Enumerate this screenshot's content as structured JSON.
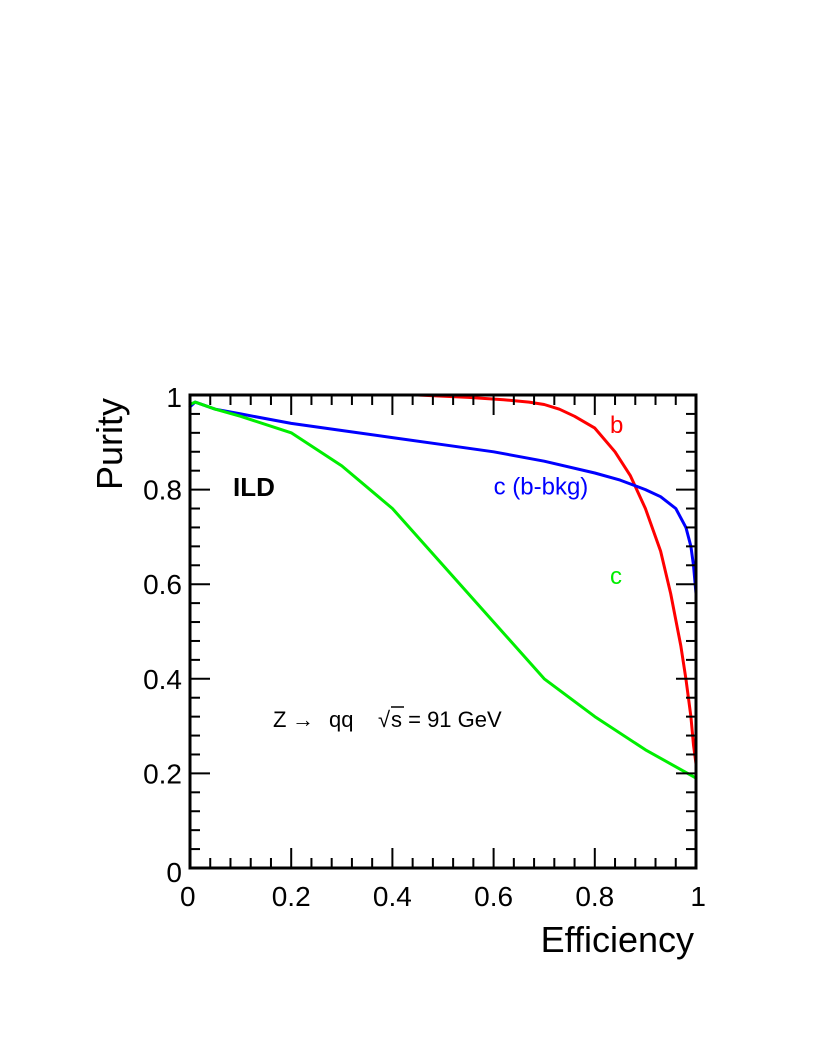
{
  "chart_data": {
    "type": "line",
    "xlabel": "Efficiency",
    "ylabel": "Purity",
    "xlim": [
      0,
      1
    ],
    "ylim": [
      0,
      1
    ],
    "grid": false,
    "x_ticks": [
      "0",
      "0.2",
      "0.4",
      "0.6",
      "0.8",
      "1"
    ],
    "y_ticks": [
      "0",
      "0.2",
      "0.4",
      "0.6",
      "0.8",
      "1"
    ],
    "annotations": {
      "experiment": "ILD",
      "process_lhs": "Z",
      "process_arrow": "→",
      "process_rhs": "qq",
      "energy_root": "√",
      "energy_text": "s = 91 GeV"
    },
    "series": [
      {
        "name": "b",
        "color": "#ff0000",
        "x": [
          0.45,
          0.55,
          0.62,
          0.67,
          0.7,
          0.73,
          0.76,
          0.8,
          0.84,
          0.87,
          0.9,
          0.93,
          0.95,
          0.97,
          0.98,
          0.99,
          0.995,
          1.0
        ],
        "y": [
          1.0,
          0.995,
          0.99,
          0.985,
          0.98,
          0.97,
          0.955,
          0.93,
          0.88,
          0.83,
          0.76,
          0.67,
          0.58,
          0.47,
          0.4,
          0.32,
          0.26,
          0.22
        ]
      },
      {
        "name": "c (b-bkg)",
        "color": "#0000ff",
        "x": [
          0.0,
          0.01,
          0.05,
          0.1,
          0.2,
          0.3,
          0.4,
          0.5,
          0.6,
          0.7,
          0.8,
          0.85,
          0.9,
          0.93,
          0.96,
          0.98,
          0.99,
          0.995,
          1.0,
          1.0
        ],
        "y": [
          0.975,
          0.985,
          0.97,
          0.96,
          0.94,
          0.925,
          0.91,
          0.895,
          0.88,
          0.86,
          0.835,
          0.82,
          0.8,
          0.785,
          0.76,
          0.72,
          0.68,
          0.64,
          0.58,
          0.2
        ]
      },
      {
        "name": "c",
        "color": "#00ee00",
        "x": [
          0.0,
          0.01,
          0.05,
          0.1,
          0.2,
          0.3,
          0.4,
          0.5,
          0.6,
          0.7,
          0.8,
          0.9,
          0.95,
          1.0
        ],
        "y": [
          0.98,
          0.985,
          0.97,
          0.955,
          0.92,
          0.85,
          0.76,
          0.64,
          0.52,
          0.4,
          0.32,
          0.25,
          0.22,
          0.19
        ]
      }
    ],
    "series_labels": [
      {
        "name": "b",
        "at": [
          0.83,
          0.92
        ],
        "color": "#ff0000"
      },
      {
        "name": "c (b-bkg)",
        "at": [
          0.6,
          0.79
        ],
        "color": "#0000ff"
      },
      {
        "name": "c",
        "at": [
          0.83,
          0.6
        ],
        "color": "#00ee00"
      }
    ]
  }
}
